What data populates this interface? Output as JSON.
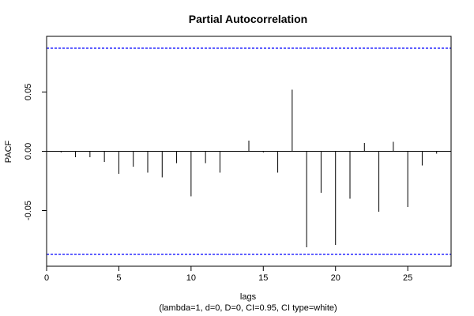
{
  "chart_data": {
    "type": "bar",
    "title": "Partial Autocorrelation",
    "xlabel": "lags",
    "ylabel": "PACF",
    "subtitle": "(lambda=1, d=0, D=0, CI=0.95, CI type=white)",
    "xlim": [
      0,
      28
    ],
    "ylim": [
      -0.097,
      0.097
    ],
    "x_ticks": [
      0,
      5,
      10,
      15,
      20,
      25
    ],
    "y_ticks": [
      -0.05,
      0.0,
      0.05
    ],
    "y_tick_labels": [
      "-0.05",
      "0.00",
      "0.05"
    ],
    "ci_upper": 0.087,
    "ci_lower": -0.087,
    "ci_color": "#0000ff",
    "bar_color": "#000000",
    "zero_line": true,
    "box": true,
    "lags": [
      1,
      2,
      3,
      4,
      5,
      6,
      7,
      8,
      9,
      10,
      11,
      12,
      13,
      14,
      15,
      16,
      17,
      18,
      19,
      20,
      21,
      22,
      23,
      24,
      25,
      26,
      27
    ],
    "values": [
      -0.001,
      -0.005,
      -0.005,
      -0.009,
      -0.019,
      -0.013,
      -0.018,
      -0.022,
      -0.01,
      -0.038,
      -0.01,
      -0.018,
      0.0,
      0.009,
      -0.001,
      -0.018,
      0.052,
      -0.081,
      -0.035,
      -0.079,
      -0.04,
      0.007,
      -0.051,
      0.008,
      -0.047,
      -0.012,
      -0.002
    ]
  }
}
